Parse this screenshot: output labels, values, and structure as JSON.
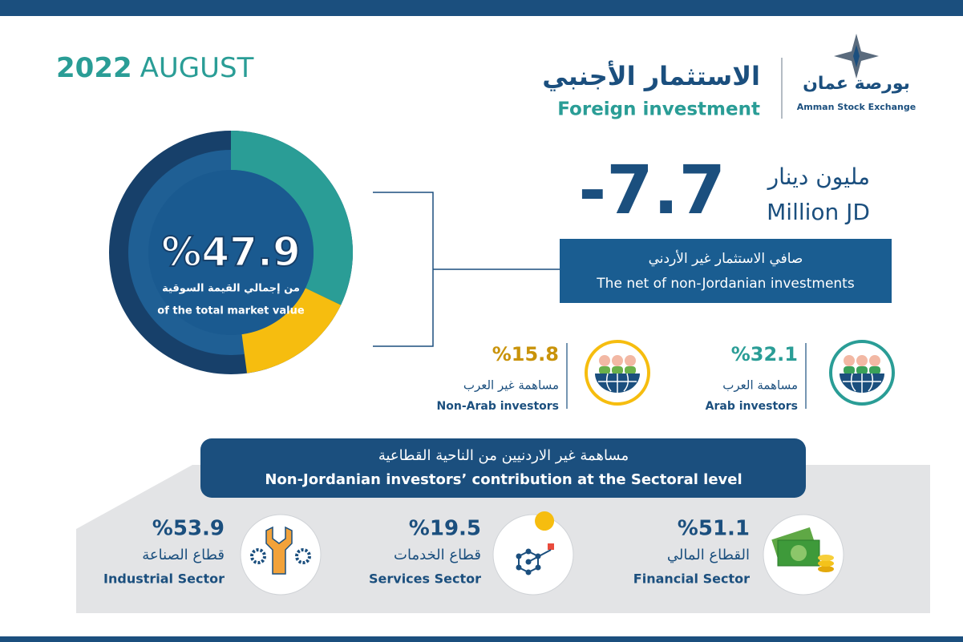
{
  "header": {
    "date": {
      "year": "2022",
      "month": "AUGUST"
    },
    "title_ar": "الاستثمار الأجنبي",
    "title_en": "Foreign investment",
    "logo_ar": "بورصة عمان",
    "logo_en": "Amman Stock Exchange"
  },
  "market_share": {
    "label": "%47.9",
    "text_ar": "من إجمالي القيمة السوقية",
    "text_en": "of the total market value"
  },
  "net_investment": {
    "label": "-7.7",
    "unit_ar": "مليون دينار",
    "unit_en": "Million JD",
    "caption_ar": "صافي الاستثمار غير الأردني",
    "caption_en": "The net of non-Jordanian investments"
  },
  "investors": [
    {
      "value": 32.1,
      "label": "%32.1",
      "name_ar": "مساهمة العرب",
      "name_en": "Arab investors",
      "color": "#2a9d96"
    },
    {
      "value": 15.8,
      "label": "%15.8",
      "name_ar": "مساهمة غير العرب",
      "name_en": "Non-Arab investors",
      "color": "#f6bd0f"
    }
  ],
  "sectors": {
    "title_ar": "مساهمة غير الاردنيين من الناحية القطاعية",
    "title_en": "Non-Jordanian investors’ contribution at the Sectoral level",
    "items": [
      {
        "label": "%51.1",
        "name_ar": "القطاع المالي",
        "name_en": "Financial Sector"
      },
      {
        "label": "%19.5",
        "name_ar": "قطاع الخدمات",
        "name_en": "Services Sector"
      },
      {
        "label": "%53.9",
        "name_ar": "قطاع الصناعة",
        "name_en": "Industrial Sector"
      }
    ]
  }
}
